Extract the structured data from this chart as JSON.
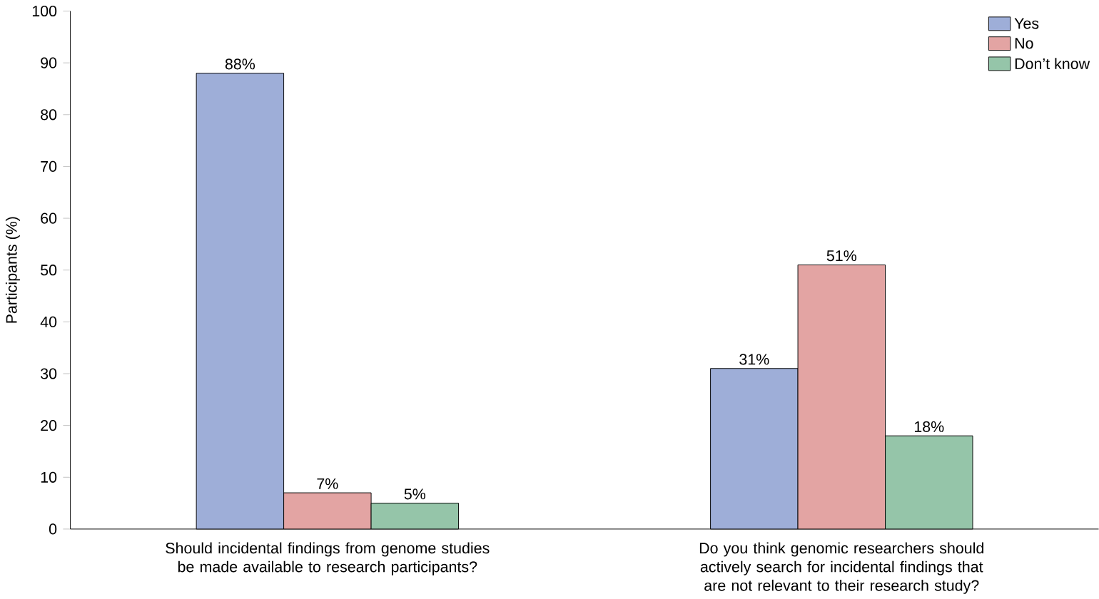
{
  "chart_data": {
    "type": "bar",
    "ylabel": "Participants (%)",
    "categories": [
      "Should incidental findings from genome studies be made available to research participants?",
      "Do you think genomic researchers should actively search for incidental findings that are not relevant to their research study?"
    ],
    "series": [
      {
        "name": "Yes",
        "color": "#9eaed8",
        "values": [
          88,
          31
        ],
        "value_labels": [
          "88%",
          "31%"
        ]
      },
      {
        "name": "No",
        "color": "#e3a4a3",
        "values": [
          7,
          51
        ],
        "value_labels": [
          "7%",
          "51%"
        ]
      },
      {
        "name": "Don’t know",
        "color": "#95c5a9",
        "values": [
          5,
          18
        ],
        "value_labels": [
          "5%",
          "18%"
        ]
      }
    ],
    "ylim": [
      0,
      100
    ],
    "yticks": [
      0,
      10,
      20,
      30,
      40,
      50,
      60,
      70,
      80,
      90,
      100
    ],
    "legend": "top right"
  }
}
